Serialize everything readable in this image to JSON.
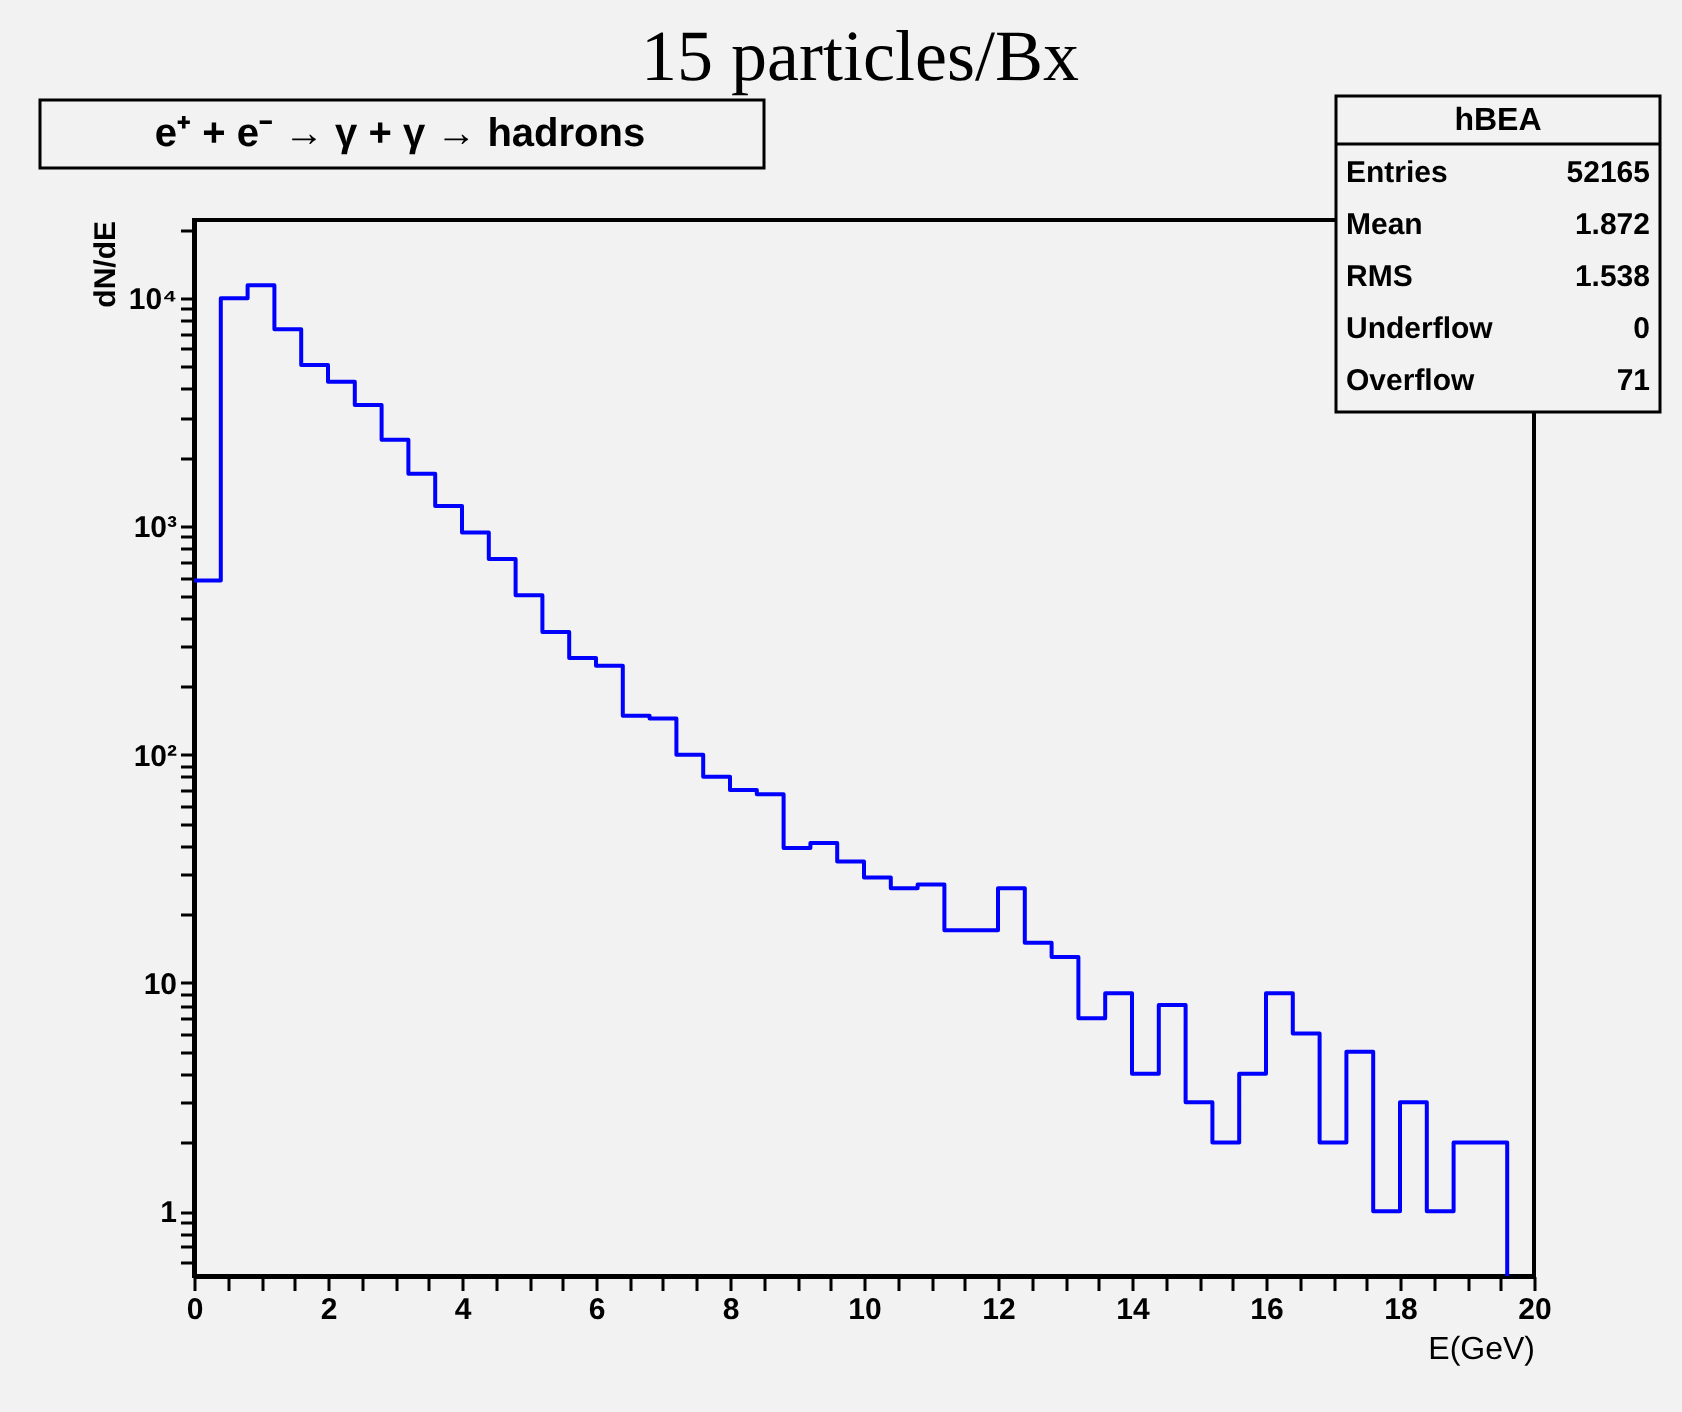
{
  "chart_data": {
    "type": "histogram",
    "title": "15 particles/Bx",
    "subtitle": "e⁺ + e⁻ → γ + γ → hadrons",
    "xlabel": "E(GeV)",
    "ylabel": "dN/dE",
    "bins": [
      0,
      0.4,
      0.8,
      1.2,
      1.6,
      2.0,
      2.4,
      2.8,
      3.2,
      3.6,
      4.0,
      4.4,
      4.8,
      5.2,
      5.6,
      6.0,
      6.4,
      6.8,
      7.2,
      7.6,
      8.0,
      8.4,
      8.8,
      9.2,
      9.6,
      10.0,
      10.4,
      10.8,
      11.2,
      11.6,
      12.0,
      12.4,
      12.8,
      13.2,
      13.6,
      14.0,
      14.4,
      14.8,
      15.2,
      15.6,
      16.0,
      16.4,
      16.8,
      17.2,
      17.6,
      18.0,
      18.4,
      18.8,
      19.2,
      19.6
    ],
    "values": [
      580,
      10000,
      11400,
      7300,
      5100,
      4300,
      3400,
      2400,
      1700,
      1230,
      940,
      720,
      500,
      345,
      265,
      245,
      148,
      144,
      100,
      80,
      70,
      67,
      39,
      41,
      34,
      29,
      26,
      27,
      17,
      17,
      26,
      15,
      13,
      7,
      9,
      4,
      8,
      3,
      2,
      4,
      9,
      6,
      2,
      5,
      1,
      3,
      1,
      2,
      2
    ],
    "color": "#0000ff",
    "log": true,
    "xlim": [
      0,
      20
    ],
    "xticks": [
      0,
      2,
      4,
      6,
      8,
      10,
      12,
      14,
      16,
      18,
      20,
      {
        "value": 0.5,
        "label": null
      },
      {
        "value": 1,
        "label": null
      },
      {
        "value": 1.5,
        "label": null
      },
      {
        "value": 2.5,
        "label": null
      },
      {
        "value": 3,
        "label": null
      },
      {
        "value": 3.5,
        "label": null
      },
      {
        "value": 4.5,
        "label": null
      },
      {
        "value": 5,
        "label": null
      },
      {
        "value": 5.5,
        "label": null
      },
      {
        "value": 6.5,
        "label": null
      },
      {
        "value": 7,
        "label": null
      },
      {
        "value": 7.5,
        "label": null
      },
      {
        "value": 8.5,
        "label": null
      },
      {
        "value": 9,
        "label": null
      },
      {
        "value": 9.5,
        "label": null
      },
      {
        "value": 10.5,
        "label": null
      },
      {
        "value": 11,
        "label": null
      },
      {
        "value": 11.5,
        "label": null
      },
      {
        "value": 12.5,
        "label": null
      },
      {
        "value": 13,
        "label": null
      },
      {
        "value": 13.5,
        "label": null
      },
      {
        "value": 14.5,
        "label": null
      },
      {
        "value": 15,
        "label": null
      },
      {
        "value": 15.5,
        "label": null
      },
      {
        "value": 16.5,
        "label": null
      },
      {
        "value": 17,
        "label": null
      },
      {
        "value": 17.5,
        "label": null
      },
      {
        "value": 18.5,
        "label": null
      },
      {
        "value": 19,
        "label": null
      },
      {
        "value": 19.5,
        "label": null
      }
    ],
    "ylim": [
      0.52,
      22000
    ],
    "yticks": [
      1,
      10,
      {
        "value": 100,
        "label": "10²"
      },
      {
        "value": 1000,
        "label": "10³"
      },
      {
        "value": 10000,
        "label": "10⁴"
      },
      {
        "value": 0.6,
        "label": null
      },
      {
        "value": 0.7,
        "label": null
      },
      {
        "value": 0.8,
        "label": null
      },
      {
        "value": 0.9,
        "label": null
      },
      {
        "value": 2,
        "label": null
      },
      {
        "value": 3,
        "label": null
      },
      {
        "value": 4,
        "label": null
      },
      {
        "value": 5,
        "label": null
      },
      {
        "value": 6,
        "label": null
      },
      {
        "value": 7,
        "label": null
      },
      {
        "value": 8,
        "label": null
      },
      {
        "value": 9,
        "label": null
      },
      {
        "value": 20,
        "label": null
      },
      {
        "value": 30,
        "label": null
      },
      {
        "value": 40,
        "label": null
      },
      {
        "value": 50,
        "label": null
      },
      {
        "value": 60,
        "label": null
      },
      {
        "value": 70,
        "label": null
      },
      {
        "value": 80,
        "label": null
      },
      {
        "value": 90,
        "label": null
      },
      {
        "value": 200,
        "label": null
      },
      {
        "value": 300,
        "label": null
      },
      {
        "value": 400,
        "label": null
      },
      {
        "value": 500,
        "label": null
      },
      {
        "value": 600,
        "label": null
      },
      {
        "value": 700,
        "label": null
      },
      {
        "value": 800,
        "label": null
      },
      {
        "value": 900,
        "label": null
      },
      {
        "value": 2000,
        "label": null
      },
      {
        "value": 3000,
        "label": null
      },
      {
        "value": 4000,
        "label": null
      },
      {
        "value": 5000,
        "label": null
      },
      {
        "value": 6000,
        "label": null
      },
      {
        "value": 7000,
        "label": null
      },
      {
        "value": 8000,
        "label": null
      },
      {
        "value": 9000,
        "label": null
      },
      {
        "value": 20000,
        "label": null
      }
    ],
    "grid": false,
    "annotations": [
      "hBEA",
      "Entries",
      "52165",
      "Mean",
      "1.872",
      "RMS",
      "1.538",
      "Underflow",
      "0",
      "Overflow",
      "71"
    ]
  }
}
